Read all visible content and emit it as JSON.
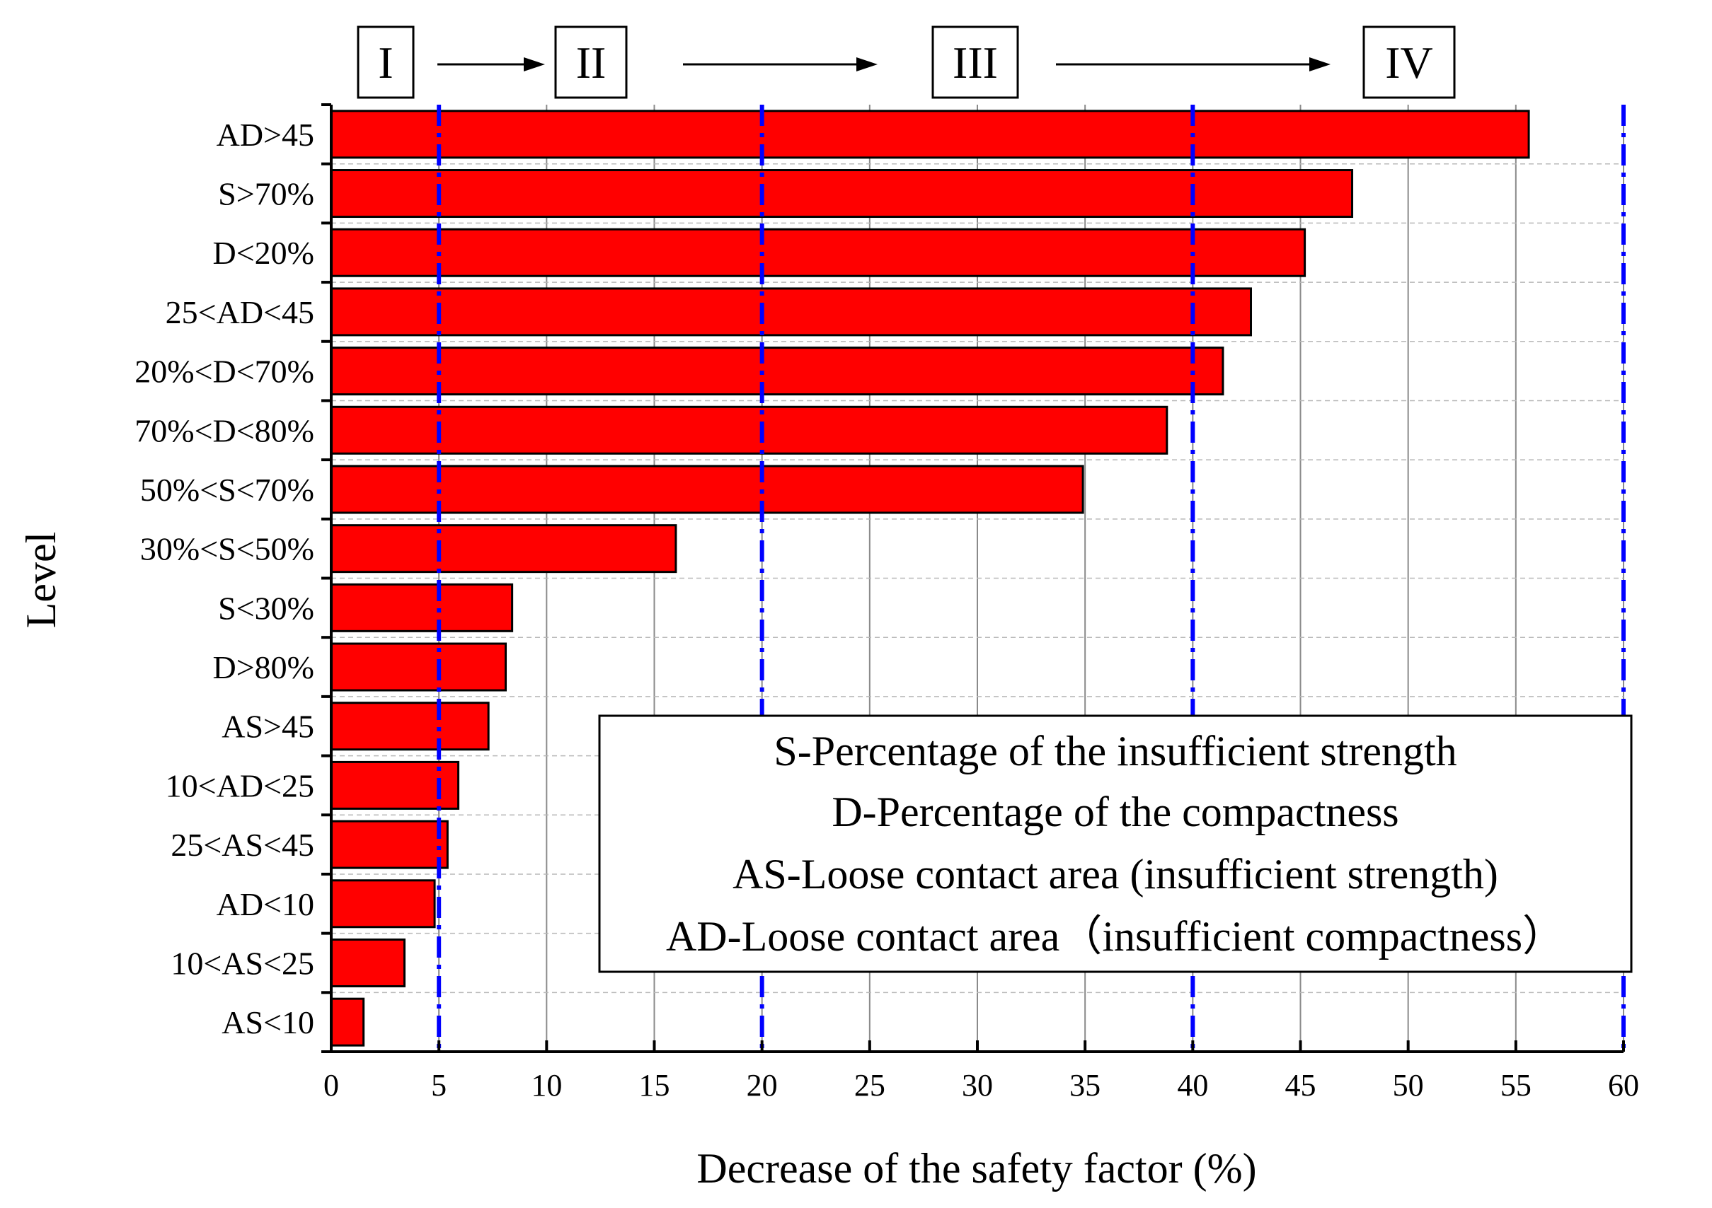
{
  "chart_data": {
    "type": "bar",
    "orientation": "horizontal",
    "xlabel": "Decrease of the safety factor (%)",
    "ylabel": "Level",
    "xlim": [
      0,
      60
    ],
    "xticks": [
      0,
      5,
      10,
      15,
      20,
      25,
      30,
      35,
      40,
      45,
      50,
      55,
      60
    ],
    "grid": true,
    "bar_color": "#ff0000",
    "stage_line_color": "#0000ff",
    "categories": [
      "AD>45",
      "S>70%",
      "D<20%",
      "25<AD<45",
      "20%<D<70%",
      "70%<D<80%",
      "50%<S<70%",
      "30%<S<50%",
      "S<30%",
      "D>80%",
      "AS>45",
      "10<AD<25",
      "25<AS<45",
      "AD<10",
      "10<AS<25",
      "AS<10"
    ],
    "values": [
      55.6,
      47.4,
      45.2,
      42.7,
      41.4,
      38.8,
      34.9,
      16.0,
      8.4,
      8.1,
      7.3,
      5.9,
      5.4,
      4.8,
      3.4,
      1.5
    ],
    "stage_boundaries": [
      5,
      20,
      40,
      60
    ],
    "stages": [
      "I",
      "II",
      "III",
      "IV"
    ],
    "legend": {
      "position": "lower-right",
      "lines": [
        "S-Percentage of the insufficient strength",
        "D-Percentage of the compactness",
        "AS-Loose contact area (insufficient strength)",
        "AD-Loose contact area（insufficient compactness）"
      ]
    }
  }
}
